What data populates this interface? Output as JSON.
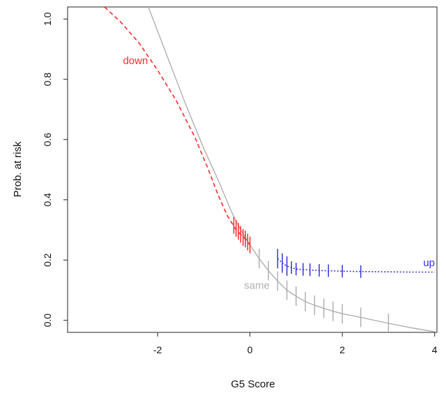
{
  "chart_data": {
    "type": "line",
    "title": "",
    "xlabel": "G5 Score",
    "ylabel": "Prob. at risk",
    "xlim": [
      -3.95,
      4.05
    ],
    "ylim": [
      -0.04,
      1.04
    ],
    "xticks": [
      -2,
      0,
      2,
      4
    ],
    "yticks": [
      0.0,
      0.2,
      0.4,
      0.6,
      0.8,
      1.0
    ],
    "xtick_labels": [
      "-2",
      "0",
      "2",
      "4"
    ],
    "ytick_labels": [
      "0.0",
      "0.2",
      "0.4",
      "0.6",
      "0.8",
      "1.0"
    ],
    "grid": false,
    "series": [
      {
        "name": "same",
        "color": "#b0b0b0",
        "line_style": "solid",
        "x": [
          -2.2,
          -1.8,
          -1.4,
          -1.0,
          -0.7,
          -0.4,
          -0.2,
          0.0,
          0.2,
          0.4,
          0.6,
          0.8,
          1.0,
          1.2,
          1.4,
          1.6,
          1.8,
          2.0,
          2.4,
          3.0,
          3.5,
          4.0
        ],
        "y": [
          1.04,
          0.88,
          0.72,
          0.57,
          0.47,
          0.36,
          0.3,
          0.25,
          0.205,
          0.165,
          0.13,
          0.1,
          0.08,
          0.062,
          0.05,
          0.04,
          0.03,
          0.022,
          0.01,
          -0.01,
          -0.025,
          -0.038
        ],
        "ticks_x": [
          0.2,
          0.4,
          0.6,
          0.8,
          1.0,
          1.2,
          1.4,
          1.6,
          1.8,
          2.0,
          2.4,
          3.0
        ],
        "ticks_y": [
          0.205,
          0.165,
          0.13,
          0.1,
          0.08,
          0.062,
          0.05,
          0.04,
          0.03,
          0.022,
          0.01,
          -0.01
        ]
      },
      {
        "name": "down",
        "color": "#ff2a2a",
        "line_style": "dashed",
        "x": [
          -3.15,
          -2.8,
          -2.4,
          -2.0,
          -1.6,
          -1.2,
          -0.9,
          -0.7,
          -0.5,
          -0.3,
          -0.1,
          0.0
        ],
        "y": [
          1.04,
          0.99,
          0.92,
          0.83,
          0.73,
          0.61,
          0.5,
          0.42,
          0.35,
          0.3,
          0.27,
          0.25
        ],
        "ticks_x": [
          -0.35,
          -0.3,
          -0.25,
          -0.2,
          -0.15,
          -0.1,
          -0.05,
          0.0
        ],
        "ticks_y": [
          0.315,
          0.305,
          0.295,
          0.285,
          0.275,
          0.27,
          0.26,
          0.25
        ]
      },
      {
        "name": "up",
        "color": "#3333dd",
        "line_style": "dotted",
        "x": [
          0.6,
          0.7,
          0.8,
          0.9,
          1.0,
          1.2,
          1.4,
          1.6,
          1.8,
          2.0,
          2.4,
          3.0,
          3.5,
          4.0
        ],
        "y": [
          0.205,
          0.19,
          0.18,
          0.175,
          0.17,
          0.168,
          0.166,
          0.165,
          0.164,
          0.163,
          0.162,
          0.161,
          0.16,
          0.16
        ],
        "ticks_x": [
          0.6,
          0.7,
          0.8,
          0.9,
          1.0,
          1.15,
          1.3,
          1.5,
          1.7,
          2.0,
          2.4
        ],
        "ticks_y": [
          0.205,
          0.19,
          0.18,
          0.175,
          0.17,
          0.169,
          0.168,
          0.166,
          0.165,
          0.163,
          0.162
        ]
      }
    ],
    "annotations": [
      {
        "text": "down",
        "x": -2.48,
        "y": 0.85,
        "color": "#ff2a2a"
      },
      {
        "text": "same",
        "x": 0.15,
        "y": 0.105,
        "color": "#b0b0b0"
      },
      {
        "text": "up",
        "x": 3.88,
        "y": 0.18,
        "color": "#3333dd"
      }
    ]
  }
}
